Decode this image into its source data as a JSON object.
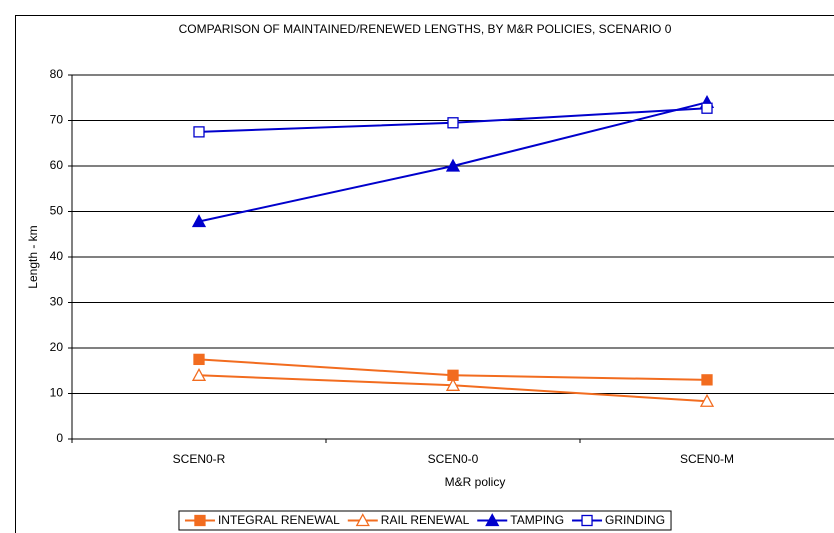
{
  "chart_data": {
    "type": "line",
    "title": "COMPARISON OF MAINTAINED/RENEWED LENGTHS, BY M&R POLICIES, SCENARIO 0",
    "x_label": "M&R policy",
    "y_label": "Length - km",
    "categories": [
      "SCEN0-R",
      "SCEN0-0",
      "SCEN0-M"
    ],
    "series": [
      {
        "name": "INTEGRAL RENEWAL",
        "color": "#f26c1f",
        "marker": "square",
        "filled": true,
        "values": [
          17.5,
          14,
          13
        ]
      },
      {
        "name": "RAIL RENEWAL",
        "color": "#f26c1f",
        "marker": "triangle",
        "filled": false,
        "values": [
          14,
          11.8,
          8.3
        ]
      },
      {
        "name": "TAMPING",
        "color": "#0000cc",
        "marker": "triangle",
        "filled": true,
        "values": [
          47.8,
          60,
          74
        ]
      },
      {
        "name": "GRINDING",
        "color": "#0000cc",
        "marker": "square",
        "filled": false,
        "values": [
          67.5,
          69.5,
          72.7
        ]
      }
    ],
    "ylim": [
      0,
      80
    ],
    "yticks": [
      0,
      10,
      20,
      30,
      40,
      50,
      60,
      70,
      80
    ],
    "grid": true,
    "legend": "bottom"
  }
}
